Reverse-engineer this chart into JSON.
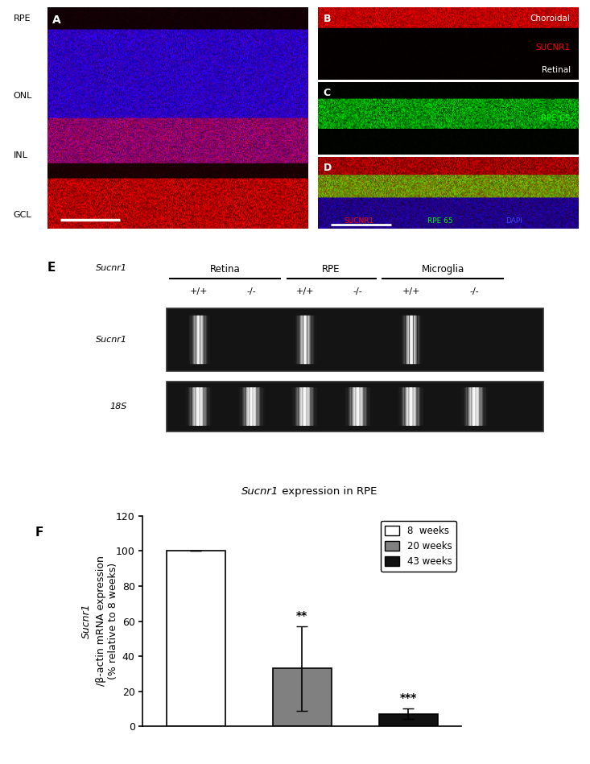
{
  "panel_F": {
    "categories": [
      "8 weeks",
      "20 weeks",
      "43 weeks"
    ],
    "values": [
      100,
      33,
      7
    ],
    "errors": [
      0,
      24,
      3
    ],
    "colors": [
      "#ffffff",
      "#808080",
      "#111111"
    ],
    "edge_colors": [
      "#000000",
      "#000000",
      "#000000"
    ],
    "title_italic": "Sucnr1",
    "title_rest": " expression in RPE",
    "ylabel_italic": "Sucnr1",
    "ylabel_rest": "/β-actin mRNA expression\n(% relative to 8 weeks)",
    "ylim": [
      0,
      120
    ],
    "yticks": [
      0,
      20,
      40,
      60,
      80,
      100,
      120
    ],
    "significance": [
      "",
      "**",
      "***"
    ],
    "legend_labels": [
      "8  weeks",
      "20 weeks",
      "43 weeks"
    ],
    "legend_colors": [
      "#ffffff",
      "#808080",
      "#111111"
    ]
  },
  "background_color": "#ffffff",
  "text_color": "#000000"
}
